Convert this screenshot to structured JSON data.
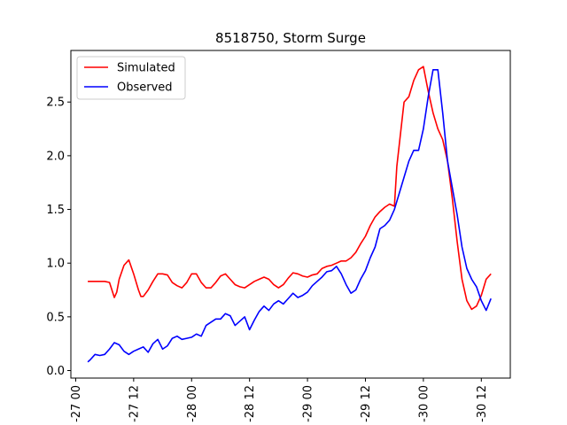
{
  "chart_data": {
    "type": "line",
    "title": "8518750, Storm Surge",
    "xlabel": "",
    "ylabel": "",
    "x_ticks": [
      "-27 00",
      "-27 12",
      "-28 00",
      "-28 12",
      "-29 00",
      "-29 12",
      "-30 00",
      "-30 12"
    ],
    "x_tick_hours": [
      0,
      12,
      24,
      36,
      48,
      60,
      72,
      84
    ],
    "xlim_hours": [
      -1,
      90
    ],
    "ylim": [
      -0.07,
      2.98
    ],
    "y_ticks": [
      0.0,
      0.5,
      1.0,
      1.5,
      2.0,
      2.5
    ],
    "y_tick_labels": [
      "0.0",
      "0.5",
      "1.0",
      "1.5",
      "2.0",
      "2.5"
    ],
    "grid": false,
    "legend_position": "top-left",
    "series": [
      {
        "name": "Simulated",
        "color": "#ff0000",
        "x_hours": [
          2.5,
          4,
          6,
          7,
          7.5,
          8,
          8.5,
          9,
          10,
          11,
          12,
          13,
          13.5,
          14,
          15,
          16,
          17,
          18,
          19,
          20,
          21,
          22,
          23,
          24,
          25,
          26,
          27,
          28,
          29,
          30,
          31,
          32,
          33,
          34,
          35,
          36,
          37,
          38,
          39,
          40,
          41,
          42,
          43,
          44,
          45,
          46,
          47,
          48,
          49,
          50,
          51,
          52,
          53,
          54,
          55,
          56,
          57,
          58,
          59,
          60,
          61,
          62,
          63,
          64,
          65,
          66,
          66.5,
          67,
          67.5,
          68,
          69,
          70,
          71,
          72,
          73,
          74,
          75,
          76,
          77,
          78,
          79,
          80,
          81,
          82,
          83,
          84,
          85,
          86
        ],
        "values": [
          0.83,
          0.83,
          0.83,
          0.82,
          0.75,
          0.68,
          0.73,
          0.85,
          0.98,
          1.03,
          0.9,
          0.75,
          0.69,
          0.69,
          0.75,
          0.83,
          0.9,
          0.9,
          0.89,
          0.82,
          0.79,
          0.77,
          0.82,
          0.9,
          0.9,
          0.82,
          0.77,
          0.77,
          0.82,
          0.88,
          0.9,
          0.85,
          0.8,
          0.78,
          0.77,
          0.8,
          0.83,
          0.85,
          0.87,
          0.85,
          0.8,
          0.77,
          0.8,
          0.86,
          0.91,
          0.9,
          0.88,
          0.87,
          0.89,
          0.9,
          0.95,
          0.97,
          0.98,
          1.0,
          1.02,
          1.02,
          1.05,
          1.1,
          1.18,
          1.25,
          1.35,
          1.43,
          1.48,
          1.52,
          1.55,
          1.53,
          1.9,
          2.1,
          2.3,
          2.5,
          2.55,
          2.7,
          2.8,
          2.83,
          2.6,
          2.4,
          2.25,
          2.15,
          1.95,
          1.6,
          1.2,
          0.85,
          0.65,
          0.57,
          0.6,
          0.7,
          0.85,
          0.9
        ]
      },
      {
        "name": "Observed",
        "color": "#0000ff",
        "x_hours": [
          2.5,
          3,
          4,
          5,
          6,
          7,
          8,
          9,
          10,
          11,
          12,
          13,
          14,
          15,
          16,
          17,
          18,
          19,
          20,
          21,
          22,
          23,
          24,
          25,
          26,
          27,
          28,
          29,
          30,
          31,
          32,
          33,
          34,
          35,
          36,
          37,
          38,
          39,
          40,
          41,
          42,
          43,
          44,
          45,
          46,
          47,
          48,
          49,
          50,
          51,
          52,
          53,
          54,
          55,
          56,
          57,
          58,
          59,
          60,
          61,
          62,
          63,
          64,
          65,
          66,
          67,
          68,
          69,
          70,
          71,
          72,
          73,
          74,
          75,
          76,
          77,
          78,
          79,
          80,
          81,
          82,
          83,
          84,
          85,
          86
        ],
        "values": [
          0.08,
          0.1,
          0.15,
          0.14,
          0.15,
          0.2,
          0.26,
          0.24,
          0.18,
          0.15,
          0.18,
          0.2,
          0.22,
          0.17,
          0.25,
          0.29,
          0.2,
          0.23,
          0.3,
          0.32,
          0.29,
          0.3,
          0.31,
          0.34,
          0.32,
          0.42,
          0.45,
          0.48,
          0.48,
          0.53,
          0.51,
          0.42,
          0.46,
          0.5,
          0.38,
          0.47,
          0.55,
          0.6,
          0.56,
          0.62,
          0.65,
          0.62,
          0.67,
          0.72,
          0.68,
          0.7,
          0.73,
          0.79,
          0.83,
          0.87,
          0.92,
          0.93,
          0.97,
          0.9,
          0.8,
          0.72,
          0.75,
          0.85,
          0.93,
          1.05,
          1.15,
          1.32,
          1.35,
          1.4,
          1.5,
          1.65,
          1.8,
          1.95,
          2.05,
          2.05,
          2.25,
          2.55,
          2.8,
          2.8,
          2.4,
          1.95,
          1.7,
          1.45,
          1.15,
          0.95,
          0.85,
          0.78,
          0.65,
          0.56,
          0.67
        ]
      }
    ]
  }
}
